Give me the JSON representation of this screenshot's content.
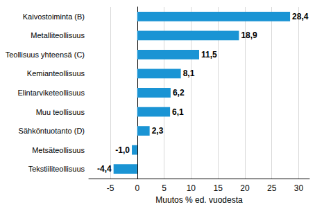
{
  "chart_data": {
    "type": "bar",
    "orientation": "horizontal",
    "x_label": "Muutos % ed. vuodesta",
    "categories": [
      "Kaivostoiminta (B)",
      "Metalliteollisuus",
      "Teollisuus yhteensä (C)",
      "Kemianteollisuus",
      "Elintarviketeollisuus",
      "Muu teollisuus",
      "Sähköntuotanto (D)",
      "Metsäteollisuus",
      "Tekstiiliteollisuus"
    ],
    "values": [
      28.4,
      18.9,
      11.5,
      8.1,
      6.2,
      6.1,
      2.3,
      -1.0,
      -4.4
    ],
    "value_labels": [
      "28,4",
      "18,9",
      "11,5",
      "8,1",
      "6,2",
      "6,1",
      "2,3",
      "-1,0",
      "-4,4"
    ],
    "color": "#1a94d4",
    "xlim": [
      -9,
      32
    ],
    "xticks": [
      -5,
      0,
      5,
      10,
      15,
      20,
      25,
      30
    ],
    "grid": true,
    "data_labels": true
  }
}
